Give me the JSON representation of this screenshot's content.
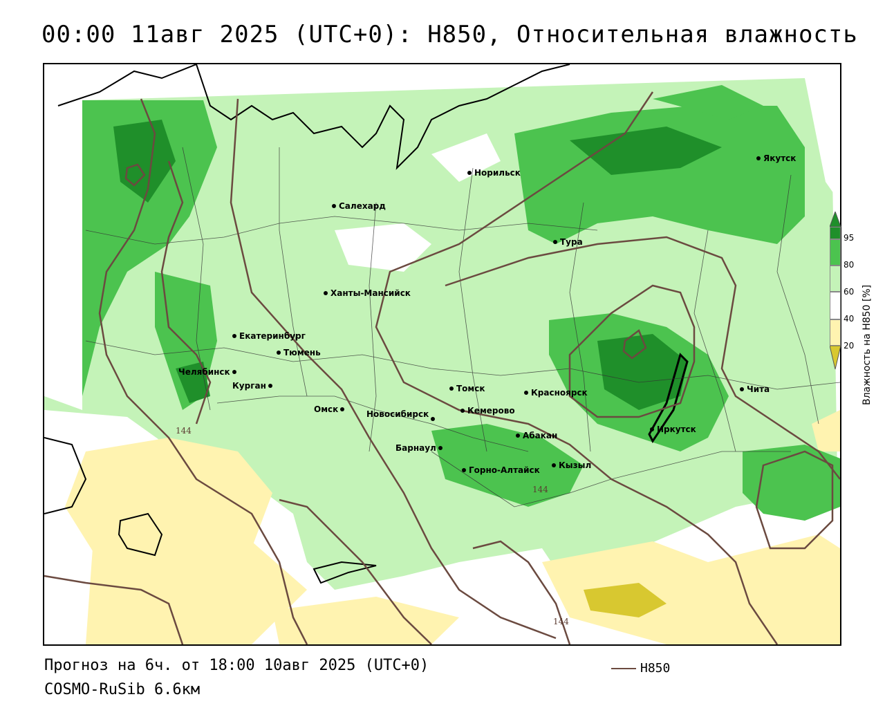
{
  "header": {
    "title": "00:00 11авг 2025 (UTC+0): H850, Относительная влажность"
  },
  "footer": {
    "forecast": "Прогноз на 6ч. от 18:00 10авг 2025 (UTC+0)",
    "model": "COSMO-RuSib 6.6км",
    "legend_label": "H850"
  },
  "colorbar": {
    "title": "Влажность на H850 [%]",
    "ticks": [
      "95",
      "80",
      "60",
      "40",
      "20"
    ],
    "colors": {
      "c95": "#1f8f2a",
      "c80": "#4cc34f",
      "c60": "#c4f3b8",
      "c40": "#ffffff",
      "c20": "#fff3b0",
      "c0": "#d8c830"
    }
  },
  "contours": {
    "color": "#6b4a40",
    "labels": [
      "144",
      "144",
      "144"
    ]
  },
  "cities": [
    {
      "name": "Норильск"
    },
    {
      "name": "Якутск"
    },
    {
      "name": "Салехард"
    },
    {
      "name": "Тура"
    },
    {
      "name": "Ханты-Мансийск"
    },
    {
      "name": "Екатеринбург"
    },
    {
      "name": "Тюмень"
    },
    {
      "name": "Челябинск"
    },
    {
      "name": "Курган"
    },
    {
      "name": "Томск"
    },
    {
      "name": "Красноярск"
    },
    {
      "name": "Омск"
    },
    {
      "name": "Новосибирск"
    },
    {
      "name": "Кемерово"
    },
    {
      "name": "Абакан"
    },
    {
      "name": "Иркутск"
    },
    {
      "name": "Чита"
    },
    {
      "name": "Барнаул"
    },
    {
      "name": "Горно-Алтайск"
    },
    {
      "name": "Кызыл"
    }
  ]
}
